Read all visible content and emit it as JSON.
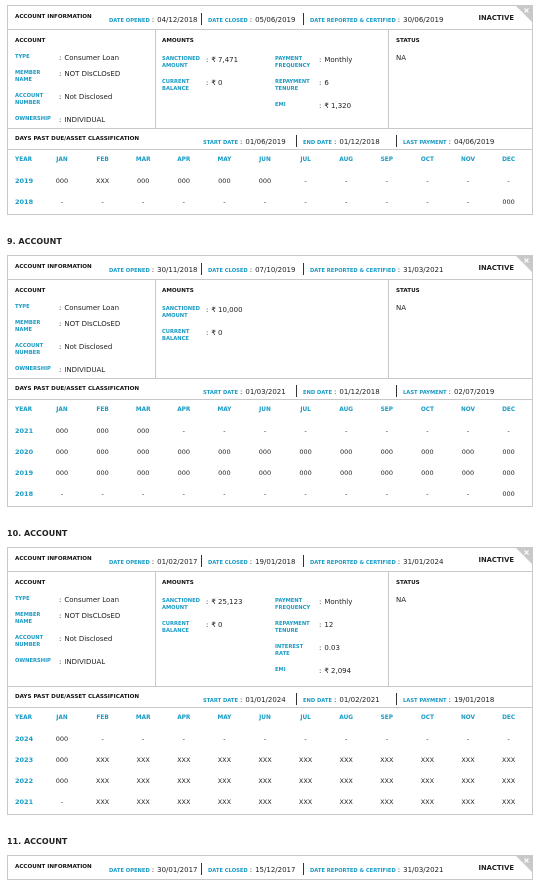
{
  "labels": {
    "account_information": "ACCOUNT INFORMATION",
    "date_opened": "DATE OPENED",
    "date_closed": "DATE CLOSED",
    "date_reported": "DATE REPORTED & CERTIFIED",
    "account": "ACCOUNT",
    "amounts": "AMOUNTS",
    "status": "STATUS",
    "type": "TYPE",
    "member_name": "MEMBER NAME",
    "account_number": "ACCOUNT NUMBER",
    "ownership": "OWNERSHIP",
    "sanctioned_amount": "SANCTIONED AMOUNT",
    "current_balance": "CURRENT BALANCE",
    "payment_frequency": "PAYMENT FREQUENCY",
    "repayment_tenure": "REPAYMENT TENURE",
    "interest_rate": "INTEREST RATE",
    "emi": "EMI",
    "dpd": "DAYS PAST DUE/ASSET CLASSIFICATION",
    "start_date": "START DATE",
    "end_date": "END DATE",
    "last_payment": "LAST PAYMENT",
    "year": "YEAR",
    "months": [
      "JAN",
      "FEB",
      "MAR",
      "APR",
      "MAY",
      "JUN",
      "JUL",
      "AUG",
      "SEP",
      "OCT",
      "NOV",
      "DEC"
    ]
  },
  "accounts": [
    {
      "date_opened": "04/12/2018",
      "date_closed": "05/06/2019",
      "date_reported": "30/06/2019",
      "state": "INACTIVE",
      "account": {
        "type": "Consumer Loan",
        "member_name": "NOT DIsCLOsED",
        "account_number": "Not Disclosed",
        "ownership": "INDIVIDUAL"
      },
      "amounts": {
        "sanctioned_amount": "₹ 7,471",
        "current_balance": "₹ 0",
        "payment_frequency": "Monthly",
        "repayment_tenure": "6",
        "emi": "₹ 1,320"
      },
      "status": "NA",
      "dpd": {
        "start_date": "01/06/2019",
        "end_date": "01/12/2018",
        "last_payment": "04/06/2019",
        "rows": [
          [
            "2019",
            "000",
            "XXX",
            "000",
            "000",
            "000",
            "000",
            "-",
            "-",
            "-",
            "-",
            "-",
            "-"
          ],
          [
            "2018",
            "-",
            "-",
            "-",
            "-",
            "-",
            "-",
            "-",
            "-",
            "-",
            "-",
            "-",
            "000"
          ]
        ]
      }
    },
    {
      "heading": "9. ACCOUNT",
      "date_opened": "30/11/2018",
      "date_closed": "07/10/2019",
      "date_reported": "31/03/2021",
      "state": "INACTIVE",
      "account": {
        "type": "Consumer Loan",
        "member_name": "NOT DIsCLOsED",
        "account_number": "Not Disclosed",
        "ownership": "INDIVIDUAL"
      },
      "amounts": {
        "sanctioned_amount": "₹ 10,000",
        "current_balance": "₹ 0"
      },
      "status": "NA",
      "dpd": {
        "start_date": "01/03/2021",
        "end_date": "01/12/2018",
        "last_payment": "02/07/2019",
        "rows": [
          [
            "2021",
            "000",
            "000",
            "000",
            "-",
            "-",
            "-",
            "-",
            "-",
            "-",
            "-",
            "-",
            "-"
          ],
          [
            "2020",
            "000",
            "000",
            "000",
            "000",
            "000",
            "000",
            "000",
            "000",
            "000",
            "000",
            "000",
            "000"
          ],
          [
            "2019",
            "000",
            "000",
            "000",
            "000",
            "000",
            "000",
            "000",
            "000",
            "000",
            "000",
            "000",
            "000"
          ],
          [
            "2018",
            "-",
            "-",
            "-",
            "-",
            "-",
            "-",
            "-",
            "-",
            "-",
            "-",
            "-",
            "000"
          ]
        ]
      }
    },
    {
      "heading": "10. ACCOUNT",
      "date_opened": "01/02/2017",
      "date_closed": "19/01/2018",
      "date_reported": "31/01/2024",
      "state": "INACTIVE",
      "account": {
        "type": "Consumer Loan",
        "member_name": "NOT DIsCLOsED",
        "account_number": "Not Disclosed",
        "ownership": "INDIVIDUAL"
      },
      "amounts": {
        "sanctioned_amount": "₹ 25,123",
        "current_balance": "₹ 0",
        "payment_frequency": "Monthly",
        "repayment_tenure": "12",
        "interest_rate": "0.03",
        "emi": "₹ 2,094"
      },
      "status": "NA",
      "dpd": {
        "start_date": "01/01/2024",
        "end_date": "01/02/2021",
        "last_payment": "19/01/2018",
        "rows": [
          [
            "2024",
            "000",
            "-",
            "-",
            "-",
            "-",
            "-",
            "-",
            "-",
            "-",
            "-",
            "-",
            "-"
          ],
          [
            "2023",
            "000",
            "XXX",
            "XXX",
            "XXX",
            "XXX",
            "XXX",
            "XXX",
            "XXX",
            "XXX",
            "XXX",
            "XXX",
            "XXX"
          ],
          [
            "2022",
            "000",
            "XXX",
            "XXX",
            "XXX",
            "XXX",
            "XXX",
            "XXX",
            "XXX",
            "XXX",
            "XXX",
            "XXX",
            "XXX"
          ],
          [
            "2021",
            "-",
            "XXX",
            "XXX",
            "XXX",
            "XXX",
            "XXX",
            "XXX",
            "XXX",
            "XXX",
            "XXX",
            "XXX",
            "XXX"
          ]
        ]
      }
    },
    {
      "heading": "11. ACCOUNT",
      "date_opened": "30/01/2017",
      "date_closed": "15/12/2017",
      "date_reported": "31/03/2021",
      "state": "INACTIVE"
    }
  ]
}
